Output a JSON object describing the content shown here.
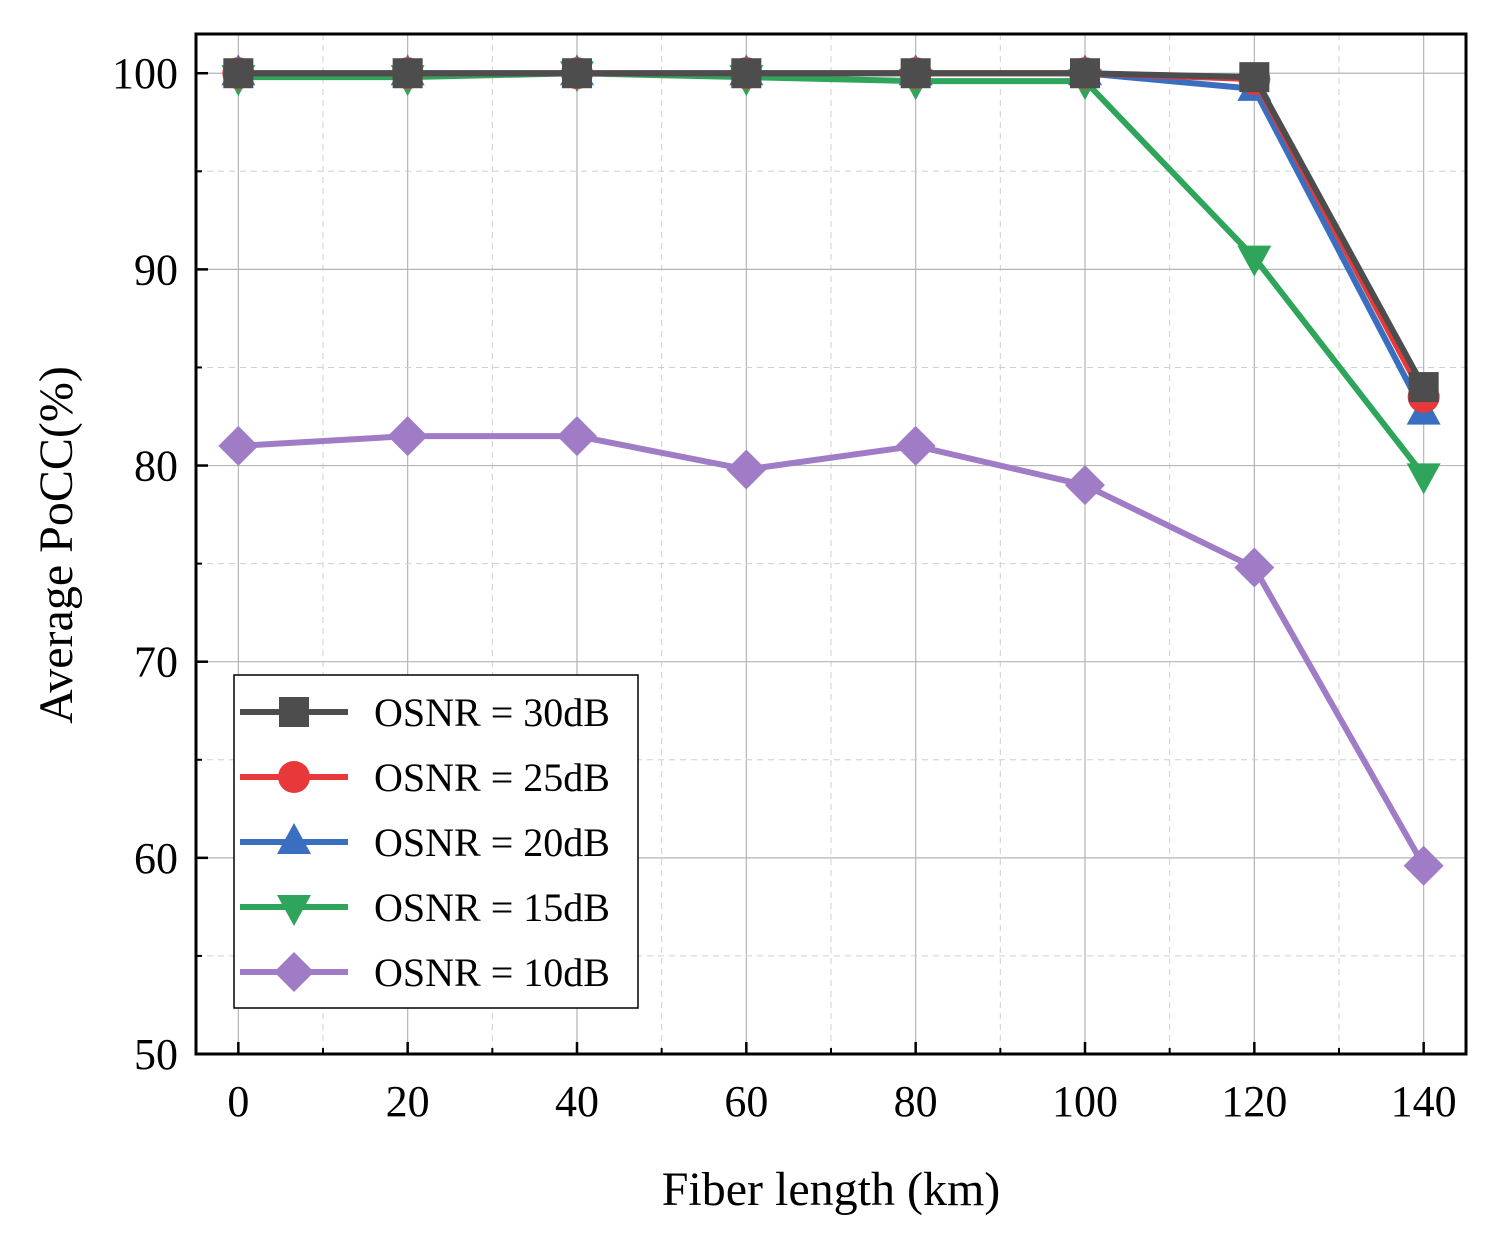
{
  "chart_data": {
    "type": "line",
    "title": "",
    "xlabel": "Fiber length (km)",
    "ylabel": "Average PoCC(%)",
    "x": [
      0,
      20,
      40,
      60,
      80,
      100,
      120,
      140
    ],
    "xlim": [
      -5,
      145
    ],
    "ylim": [
      50,
      102
    ],
    "xticks": [
      0,
      20,
      40,
      60,
      80,
      100,
      120,
      140
    ],
    "yticks": [
      50,
      60,
      70,
      80,
      90,
      100
    ],
    "xtick_labels": [
      "0",
      "20",
      "40",
      "60",
      "80",
      "100",
      "120",
      "140"
    ],
    "ytick_labels": [
      "50",
      "60",
      "70",
      "80",
      "90",
      "100"
    ],
    "grid": true,
    "legend_position": "bottom-left",
    "series": [
      {
        "name": "OSNR = 30dB",
        "color": "#4d4d4d",
        "marker": "square",
        "values": [
          100,
          100,
          100,
          100,
          100,
          100,
          99.8,
          84.0
        ]
      },
      {
        "name": "OSNR = 25dB",
        "color": "#e8393a",
        "marker": "circle",
        "values": [
          100,
          100,
          100,
          100,
          100,
          100,
          99.7,
          83.5
        ]
      },
      {
        "name": "OSNR = 20dB",
        "color": "#3a6fbf",
        "marker": "triangle-up",
        "values": [
          100,
          100,
          100,
          100,
          100,
          100,
          99.2,
          82.7
        ]
      },
      {
        "name": "OSNR = 15dB",
        "color": "#2ea55a",
        "marker": "triangle-down",
        "values": [
          99.8,
          99.8,
          100,
          99.8,
          99.6,
          99.6,
          90.6,
          79.5
        ]
      },
      {
        "name": "OSNR = 10dB",
        "color": "#a07cc6",
        "marker": "diamond",
        "values": [
          81.0,
          81.5,
          81.5,
          79.8,
          81.0,
          79.0,
          74.8,
          59.6
        ]
      }
    ]
  }
}
